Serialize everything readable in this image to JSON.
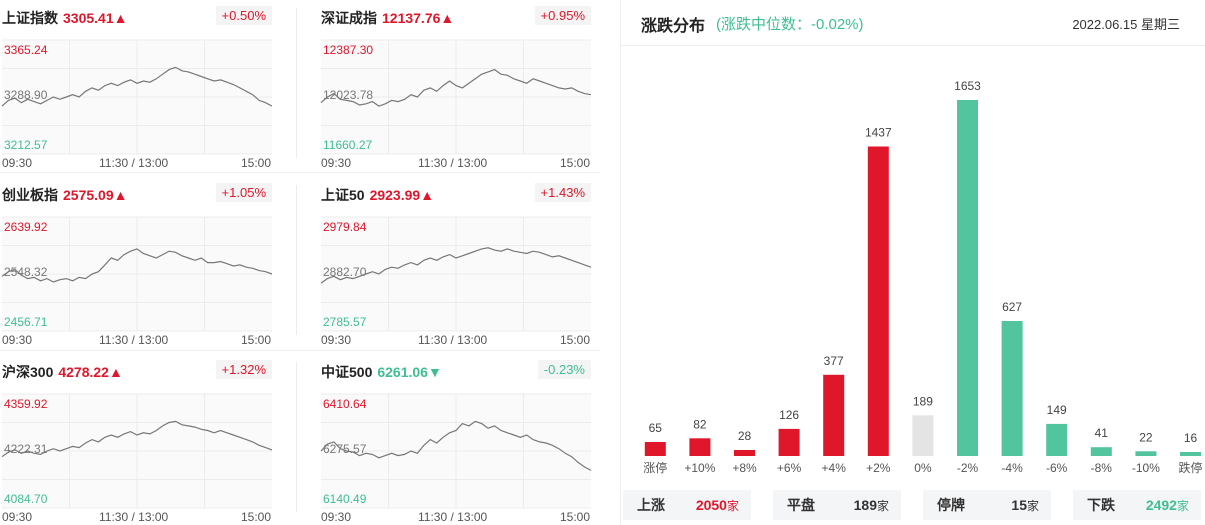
{
  "indices": [
    {
      "name": "上证指数",
      "value": "3305.41",
      "arrow": "▲",
      "change": "+0.50%",
      "dir": "up",
      "y_high": "3365.24",
      "y_mid": "3288.90",
      "y_low": "3212.57",
      "series": [
        0.42,
        0.47,
        0.49,
        0.45,
        0.48,
        0.46,
        0.44,
        0.47,
        0.5,
        0.48,
        0.5,
        0.52,
        0.5,
        0.55,
        0.58,
        0.56,
        0.6,
        0.62,
        0.6,
        0.63,
        0.65,
        0.62,
        0.64,
        0.63,
        0.66,
        0.7,
        0.74,
        0.76,
        0.73,
        0.72,
        0.7,
        0.68,
        0.66,
        0.64,
        0.65,
        0.63,
        0.61,
        0.58,
        0.55,
        0.52,
        0.47,
        0.45,
        0.42
      ]
    },
    {
      "name": "深证成指",
      "value": "12137.76",
      "arrow": "▲",
      "change": "+0.95%",
      "dir": "up",
      "y_high": "12387.30",
      "y_mid": "12023.78",
      "y_low": "11660.27",
      "series": [
        0.45,
        0.5,
        0.53,
        0.48,
        0.47,
        0.46,
        0.43,
        0.44,
        0.46,
        0.42,
        0.44,
        0.47,
        0.46,
        0.48,
        0.52,
        0.5,
        0.56,
        0.58,
        0.55,
        0.6,
        0.64,
        0.6,
        0.58,
        0.62,
        0.66,
        0.7,
        0.72,
        0.74,
        0.7,
        0.69,
        0.66,
        0.64,
        0.62,
        0.66,
        0.64,
        0.62,
        0.6,
        0.58,
        0.57,
        0.58,
        0.55,
        0.53,
        0.52
      ]
    },
    {
      "name": "创业板指",
      "value": "2575.09",
      "arrow": "▲",
      "change": "+1.05%",
      "dir": "up",
      "y_high": "2639.92",
      "y_mid": "2548.32",
      "y_low": "2456.71",
      "series": [
        0.48,
        0.52,
        0.54,
        0.49,
        0.46,
        0.47,
        0.44,
        0.46,
        0.43,
        0.45,
        0.46,
        0.44,
        0.47,
        0.46,
        0.5,
        0.52,
        0.58,
        0.64,
        0.62,
        0.67,
        0.7,
        0.72,
        0.68,
        0.66,
        0.64,
        0.67,
        0.7,
        0.69,
        0.66,
        0.64,
        0.62,
        0.64,
        0.6,
        0.6,
        0.61,
        0.59,
        0.57,
        0.58,
        0.56,
        0.55,
        0.53,
        0.52,
        0.5
      ]
    },
    {
      "name": "上证50",
      "value": "2923.99",
      "arrow": "▲",
      "change": "+1.43%",
      "dir": "up",
      "y_high": "2979.84",
      "y_mid": "2882.70",
      "y_low": "2785.57",
      "series": [
        0.42,
        0.46,
        0.48,
        0.45,
        0.47,
        0.46,
        0.48,
        0.5,
        0.52,
        0.5,
        0.54,
        0.56,
        0.55,
        0.58,
        0.6,
        0.58,
        0.62,
        0.64,
        0.62,
        0.65,
        0.67,
        0.64,
        0.66,
        0.68,
        0.7,
        0.72,
        0.73,
        0.71,
        0.7,
        0.72,
        0.7,
        0.69,
        0.68,
        0.7,
        0.69,
        0.67,
        0.65,
        0.66,
        0.64,
        0.62,
        0.6,
        0.58,
        0.56
      ]
    },
    {
      "name": "沪深300",
      "value": "4278.22",
      "arrow": "▲",
      "change": "+1.32%",
      "dir": "up",
      "y_high": "4359.92",
      "y_mid": "4222.31",
      "y_low": "4084.70",
      "series": [
        0.45,
        0.49,
        0.51,
        0.48,
        0.5,
        0.48,
        0.47,
        0.5,
        0.52,
        0.5,
        0.52,
        0.54,
        0.53,
        0.57,
        0.6,
        0.58,
        0.62,
        0.64,
        0.62,
        0.65,
        0.67,
        0.64,
        0.66,
        0.65,
        0.68,
        0.72,
        0.75,
        0.76,
        0.73,
        0.72,
        0.71,
        0.69,
        0.68,
        0.66,
        0.68,
        0.66,
        0.64,
        0.62,
        0.6,
        0.58,
        0.55,
        0.53,
        0.51
      ]
    },
    {
      "name": "中证500",
      "value": "6261.06",
      "arrow": "▼",
      "change": "-0.23%",
      "dir": "down",
      "y_high": "6410.64",
      "y_mid": "6275.57",
      "y_low": "6140.49",
      "series": [
        0.5,
        0.56,
        0.58,
        0.52,
        0.5,
        0.49,
        0.46,
        0.48,
        0.47,
        0.44,
        0.46,
        0.48,
        0.46,
        0.47,
        0.5,
        0.48,
        0.55,
        0.6,
        0.57,
        0.62,
        0.66,
        0.68,
        0.74,
        0.72,
        0.76,
        0.74,
        0.7,
        0.72,
        0.68,
        0.66,
        0.64,
        0.62,
        0.64,
        0.6,
        0.58,
        0.57,
        0.55,
        0.52,
        0.48,
        0.45,
        0.4,
        0.36,
        0.33
      ]
    }
  ],
  "x_labels": [
    "09:30",
    "11:30 / 13:00",
    "15:00"
  ],
  "distribution": {
    "title": "涨跌分布",
    "subtitle": "(涨跌中位数：-0.02%)",
    "date": "2022.06.15 星期三",
    "colors": {
      "up": "#e0162b",
      "flat": "#e4e4e4",
      "down": "#52c49e"
    }
  },
  "chart_data": {
    "type": "bar",
    "categories": [
      "涨停",
      "+10%",
      "+8%",
      "+6%",
      "+4%",
      "+2%",
      "0%",
      "-2%",
      "-4%",
      "-6%",
      "-8%",
      "-10%",
      "跌停"
    ],
    "values": [
      65,
      82,
      28,
      126,
      377,
      1437,
      189,
      1653,
      627,
      149,
      41,
      22,
      16
    ],
    "groups": [
      "up",
      "up",
      "up",
      "up",
      "up",
      "up",
      "flat",
      "down",
      "down",
      "down",
      "down",
      "down",
      "down"
    ],
    "title": "涨跌分布",
    "ylim": [
      0,
      1653
    ]
  },
  "summary": [
    {
      "label": "上涨",
      "value": "2050",
      "unit": "家",
      "dir": "up"
    },
    {
      "label": "平盘",
      "value": "189",
      "unit": "家",
      "dir": "flat"
    },
    {
      "label": "停牌",
      "value": "15",
      "unit": "家",
      "dir": "flat"
    },
    {
      "label": "下跌",
      "value": "2492",
      "unit": "家",
      "dir": "down"
    }
  ]
}
